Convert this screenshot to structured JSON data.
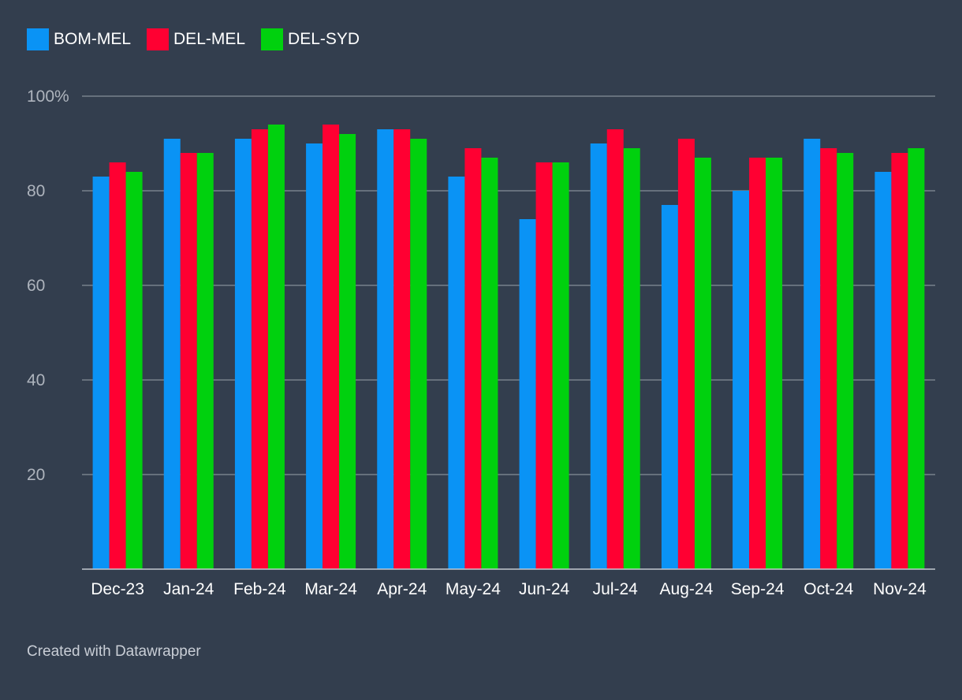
{
  "chart_data": {
    "type": "bar",
    "categories": [
      "Dec-23",
      "Jan-24",
      "Feb-24",
      "Mar-24",
      "Apr-24",
      "May-24",
      "Jun-24",
      "Jul-24",
      "Aug-24",
      "Sep-24",
      "Oct-24",
      "Nov-24"
    ],
    "series": [
      {
        "name": "BOM-MEL",
        "color": "#0a93f5",
        "values": [
          83,
          91,
          91,
          90,
          93,
          83,
          74,
          90,
          77,
          80,
          91,
          84
        ]
      },
      {
        "name": "DEL-MEL",
        "color": "#ff0032",
        "values": [
          86,
          88,
          93,
          94,
          93,
          89,
          86,
          93,
          91,
          87,
          89,
          88
        ]
      },
      {
        "name": "DEL-SYD",
        "color": "#00d10e",
        "values": [
          84,
          88,
          94,
          92,
          91,
          87,
          86,
          89,
          87,
          87,
          88,
          89
        ]
      }
    ],
    "yticks": [
      {
        "value": 100,
        "label": "100%"
      },
      {
        "value": 80,
        "label": "80"
      },
      {
        "value": 60,
        "label": "60"
      },
      {
        "value": 40,
        "label": "40"
      },
      {
        "value": 20,
        "label": "20"
      }
    ],
    "ylim": [
      0,
      100
    ],
    "grid": true,
    "legend_position": "top-left"
  },
  "footer": {
    "text": "Created with Datawrapper"
  }
}
